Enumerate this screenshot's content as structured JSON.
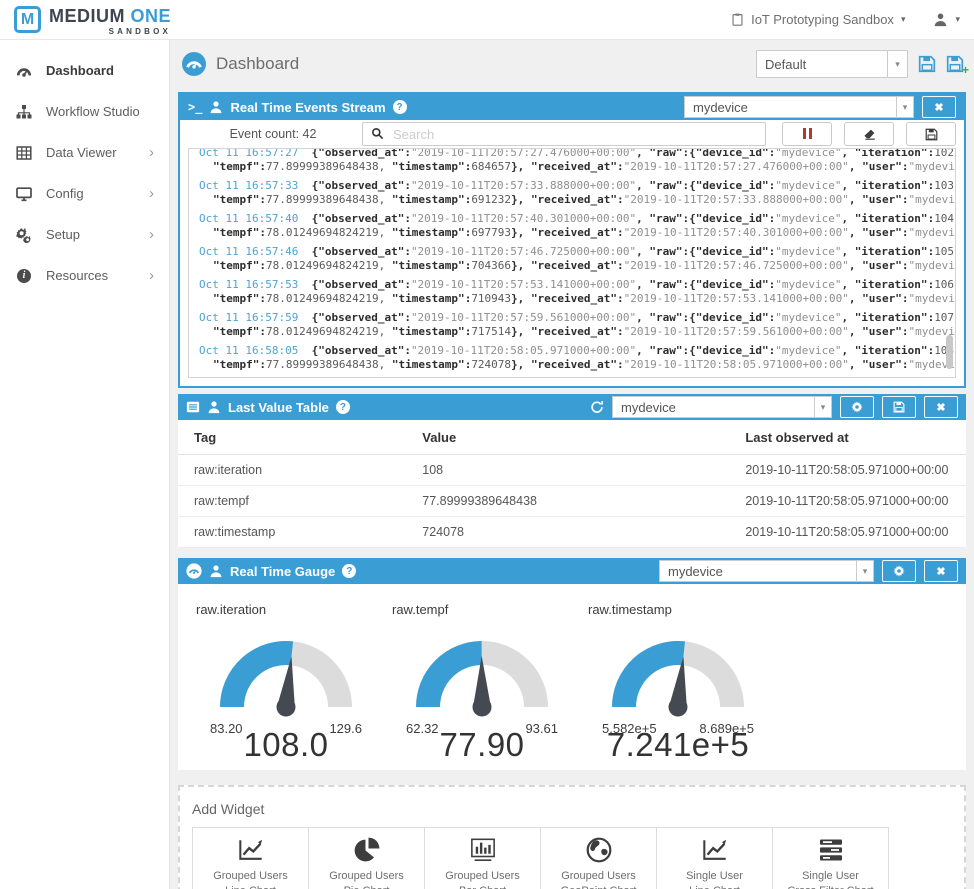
{
  "colors": {
    "accent": "#3A9ED5",
    "time_blue": "#4FA3D1",
    "pause_red": "#B03A2E",
    "plus_green": "#3FA44E",
    "needle": "#454A52",
    "dial_gray": "#DCDCDC"
  },
  "app_header": {
    "logo_letter": "M",
    "brand_primary": "MEDIUM",
    "brand_secondary": "ONE",
    "brand_subtitle": "SANDBOX",
    "sandbox_label": "IoT Prototyping Sandbox"
  },
  "sidebar": {
    "items": [
      {
        "label": "Dashboard",
        "icon": "tachometer",
        "active": true,
        "chevron": false
      },
      {
        "label": "Workflow Studio",
        "icon": "sitemap",
        "active": false,
        "chevron": false
      },
      {
        "label": "Data Viewer",
        "icon": "table",
        "active": false,
        "chevron": true
      },
      {
        "label": "Config",
        "icon": "monitor",
        "active": false,
        "chevron": true
      },
      {
        "label": "Setup",
        "icon": "gears",
        "active": false,
        "chevron": true
      },
      {
        "label": "Resources",
        "icon": "info",
        "active": false,
        "chevron": true
      }
    ]
  },
  "page": {
    "title": "Dashboard",
    "dashboard_select": "Default"
  },
  "stream_panel": {
    "title": "Real Time Events Stream",
    "device_select": "mydevice",
    "event_count": "Event count: 42",
    "search_placeholder": "Search",
    "events": [
      {
        "time": "Oct 11 16:57:27",
        "observed_at": "2019-10-11T20:57:27.476000+00:00",
        "device_id": "mydevice",
        "iteration": 102,
        "tempf": "77.89999389648438",
        "timestamp": 684657,
        "received_at": "2019-10-11T20:57:27.476000+00:00",
        "user": "mydevice"
      },
      {
        "time": "Oct 11 16:57:33",
        "observed_at": "2019-10-11T20:57:33.888000+00:00",
        "device_id": "mydevice",
        "iteration": 103,
        "tempf": "77.89999389648438",
        "timestamp": 691232,
        "received_at": "2019-10-11T20:57:33.888000+00:00",
        "user": "mydevice"
      },
      {
        "time": "Oct 11 16:57:40",
        "observed_at": "2019-10-11T20:57:40.301000+00:00",
        "device_id": "mydevice",
        "iteration": 104,
        "tempf": "78.01249694824219",
        "timestamp": 697793,
        "received_at": "2019-10-11T20:57:40.301000+00:00",
        "user": "mydevice"
      },
      {
        "time": "Oct 11 16:57:46",
        "observed_at": "2019-10-11T20:57:46.725000+00:00",
        "device_id": "mydevice",
        "iteration": 105,
        "tempf": "78.01249694824219",
        "timestamp": 704366,
        "received_at": "2019-10-11T20:57:46.725000+00:00",
        "user": "mydevice"
      },
      {
        "time": "Oct 11 16:57:53",
        "observed_at": "2019-10-11T20:57:53.141000+00:00",
        "device_id": "mydevice",
        "iteration": 106,
        "tempf": "78.01249694824219",
        "timestamp": 710943,
        "received_at": "2019-10-11T20:57:53.141000+00:00",
        "user": "mydevice"
      },
      {
        "time": "Oct 11 16:57:59",
        "observed_at": "2019-10-11T20:57:59.561000+00:00",
        "device_id": "mydevice",
        "iteration": 107,
        "tempf": "78.01249694824219",
        "timestamp": 717514,
        "received_at": "2019-10-11T20:57:59.561000+00:00",
        "user": "mydevice"
      },
      {
        "time": "Oct 11 16:58:05",
        "observed_at": "2019-10-11T20:58:05.971000+00:00",
        "device_id": "mydevice",
        "iteration": 108,
        "tempf": "77.89999389648438",
        "timestamp": 724078,
        "received_at": "2019-10-11T20:58:05.971000+00:00",
        "user": "mydevice"
      }
    ]
  },
  "table_panel": {
    "title": "Last Value Table",
    "device_select": "mydevice",
    "columns": [
      "Tag",
      "Value",
      "Last observed at"
    ],
    "rows": [
      [
        "raw:iteration",
        "108",
        "2019-10-11T20:58:05.971000+00:00"
      ],
      [
        "raw:tempf",
        "77.89999389648438",
        "2019-10-11T20:58:05.971000+00:00"
      ],
      [
        "raw:timestamp",
        "724078",
        "2019-10-11T20:58:05.971000+00:00"
      ]
    ]
  },
  "gauge_panel": {
    "title": "Real Time Gauge",
    "device_select": "mydevice",
    "gauges": [
      {
        "label": "raw.iteration",
        "min": 83.2,
        "max": 129.6,
        "value": 108.0,
        "min_label": "83.20",
        "max_label": "129.6",
        "value_label": "108.0"
      },
      {
        "label": "raw.tempf",
        "min": 62.32,
        "max": 93.61,
        "value": 77.9,
        "min_label": "62.32",
        "max_label": "93.61",
        "value_label": "77.90"
      },
      {
        "label": "raw.timestamp",
        "min": 558200,
        "max": 868900,
        "value": 724100,
        "min_label": "5.582e+5",
        "max_label": "8.689e+5",
        "value_label": "7.241e+5"
      }
    ]
  },
  "add_widget": {
    "title": "Add Widget",
    "tiles": [
      {
        "icon": "line-chart",
        "line1": "Grouped Users",
        "line2": "Line Chart"
      },
      {
        "icon": "pie-chart",
        "line1": "Grouped Users",
        "line2": "Pie Chart"
      },
      {
        "icon": "bar-chart",
        "line1": "Grouped Users",
        "line2": "Bar Chart"
      },
      {
        "icon": "globe",
        "line1": "Grouped Users",
        "line2": "GeoPoint Chart"
      },
      {
        "icon": "line-chart",
        "line1": "Single User",
        "line2": "Line Chart"
      },
      {
        "icon": "cross-filter",
        "line1": "Single User",
        "line2": "Cross Filter Chart"
      }
    ]
  }
}
